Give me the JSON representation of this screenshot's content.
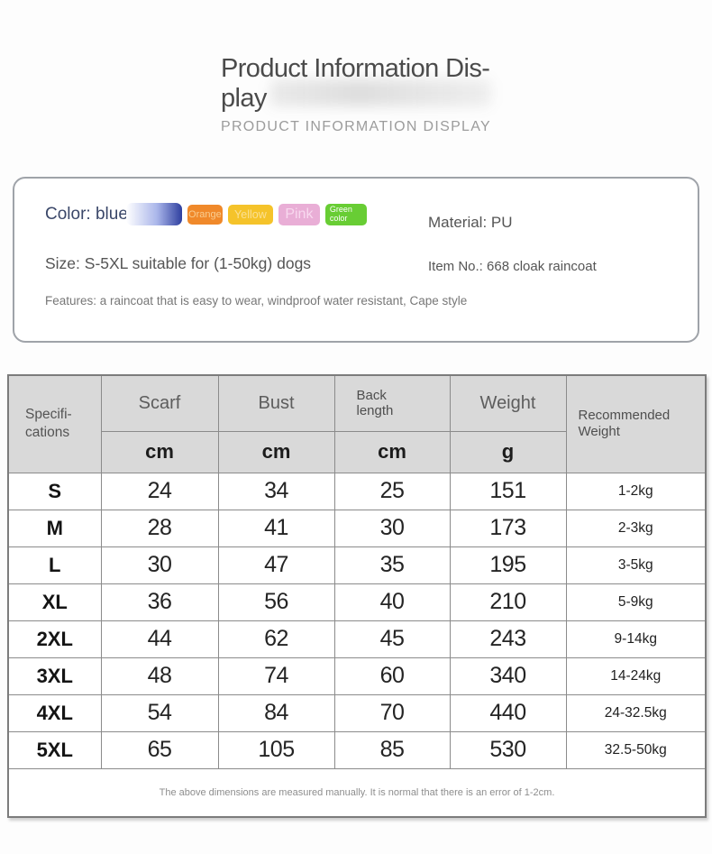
{
  "page": {
    "title_line1": "Product Information Dis-",
    "title_line2": "play",
    "subtitle": "PRODUCT INFORMATION DISPLAY"
  },
  "info_box": {
    "color_label": "Color: blue",
    "swatches": [
      {
        "name": "blue-gradient",
        "label": "",
        "type": "gradient",
        "bg_start": "#ffffff",
        "bg_mid": "#aab6ea",
        "bg_end": "#2e3f9f",
        "fg": ""
      },
      {
        "name": "orange",
        "label": "Orange",
        "type": "solid",
        "bg": "#f0892a",
        "fg": "#f9cd90"
      },
      {
        "name": "yellow",
        "label": "Yellow",
        "type": "solid",
        "bg": "#f5c32a",
        "fg": "#fbe093"
      },
      {
        "name": "pink",
        "label": "Pink",
        "type": "solid",
        "bg": "#e9aed6",
        "fg": "#f8d9ef"
      },
      {
        "name": "green",
        "label": "Green color",
        "type": "solid",
        "bg": "#68cd34",
        "fg": "#ffffff"
      }
    ],
    "size_text": "Size: S-5XL suitable for (1-50kg) dogs",
    "material_text": "Material: PU",
    "item_no_text": "Item No.: 668 cloak raincoat",
    "features_text": "Features: a raincoat that is easy to wear, windproof water resistant, Cape style"
  },
  "table": {
    "spec_header": "Specifi-\ncations",
    "columns": [
      {
        "label": "Scarf",
        "unit": "cm"
      },
      {
        "label": "Bust",
        "unit": "cm"
      },
      {
        "label": "Back\nlength",
        "unit": "cm"
      },
      {
        "label": "Weight",
        "unit": "g"
      }
    ],
    "recommended_header": "Recommended\nWeight",
    "rows": [
      {
        "size": "S",
        "scarf": "24",
        "bust": "34",
        "back": "25",
        "weight": "151",
        "rec": "1-2kg"
      },
      {
        "size": "M",
        "scarf": "28",
        "bust": "41",
        "back": "30",
        "weight": "173",
        "rec": "2-3kg"
      },
      {
        "size": "L",
        "scarf": "30",
        "bust": "47",
        "back": "35",
        "weight": "195",
        "rec": "3-5kg"
      },
      {
        "size": "XL",
        "scarf": "36",
        "bust": "56",
        "back": "40",
        "weight": "210",
        "rec": "5-9kg"
      },
      {
        "size": "2XL",
        "scarf": "44",
        "bust": "62",
        "back": "45",
        "weight": "243",
        "rec": "9-14kg"
      },
      {
        "size": "3XL",
        "scarf": "48",
        "bust": "74",
        "back": "60",
        "weight": "340",
        "rec": "14-24kg"
      },
      {
        "size": "4XL",
        "scarf": "54",
        "bust": "84",
        "back": "70",
        "weight": "440",
        "rec": "24-32.5kg"
      },
      {
        "size": "5XL",
        "scarf": "65",
        "bust": "105",
        "back": "85",
        "weight": "530",
        "rec": "32.5-50kg"
      }
    ],
    "footer_note": "The above dimensions are measured manually. It is normal that there is an error of 1-2cm."
  },
  "colors": {
    "header_bg": "#d9d9d9",
    "table_border": "#8b8b8b",
    "title_text": "#4b4b4b",
    "subtitle_text": "#9c9c9c",
    "color_label_text": "#3a4769"
  }
}
